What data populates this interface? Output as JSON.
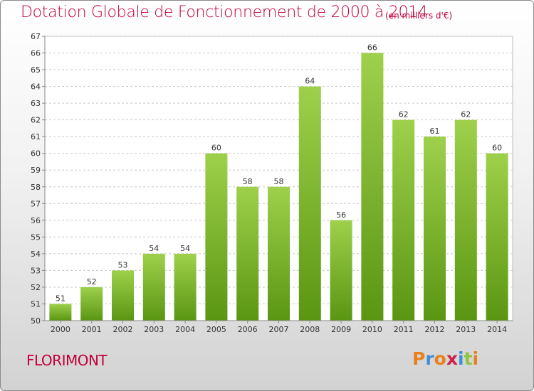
{
  "header": {
    "title": "Dotation Globale de Fonctionnement de 2000 à 2014",
    "subtitle": "(en milliers d'€)"
  },
  "footer": {
    "commune": "FLORIMONT",
    "brand": "Proxiti",
    "brand_letters": [
      "P",
      "r",
      "o",
      "x",
      "i",
      "t",
      "i"
    ],
    "brand_colors": [
      "#e8811d",
      "#3f8fd6",
      "#e8811d",
      "#d02048",
      "#3f8fd6",
      "#8dc63f",
      "#e8811d"
    ]
  },
  "colors": {
    "title": "#c2003a",
    "bar_top": "#9ed04b",
    "bar_bottom": "#5a9612",
    "text": "#333333",
    "grid": "#c8c8c8"
  },
  "chart_data": {
    "type": "bar",
    "categories": [
      "2000",
      "2001",
      "2002",
      "2003",
      "2004",
      "2005",
      "2006",
      "2007",
      "2008",
      "2009",
      "2010",
      "2011",
      "2012",
      "2013",
      "2014"
    ],
    "values": [
      51,
      52,
      53,
      54,
      54,
      60,
      58,
      58,
      64,
      56,
      66,
      62,
      61,
      62,
      60
    ],
    "ylim": [
      50,
      67
    ],
    "yticks": [
      50,
      51,
      52,
      53,
      54,
      55,
      56,
      57,
      58,
      59,
      60,
      61,
      62,
      63,
      64,
      65,
      66,
      67
    ],
    "grid": true,
    "legend": "none",
    "data_labels": true
  }
}
